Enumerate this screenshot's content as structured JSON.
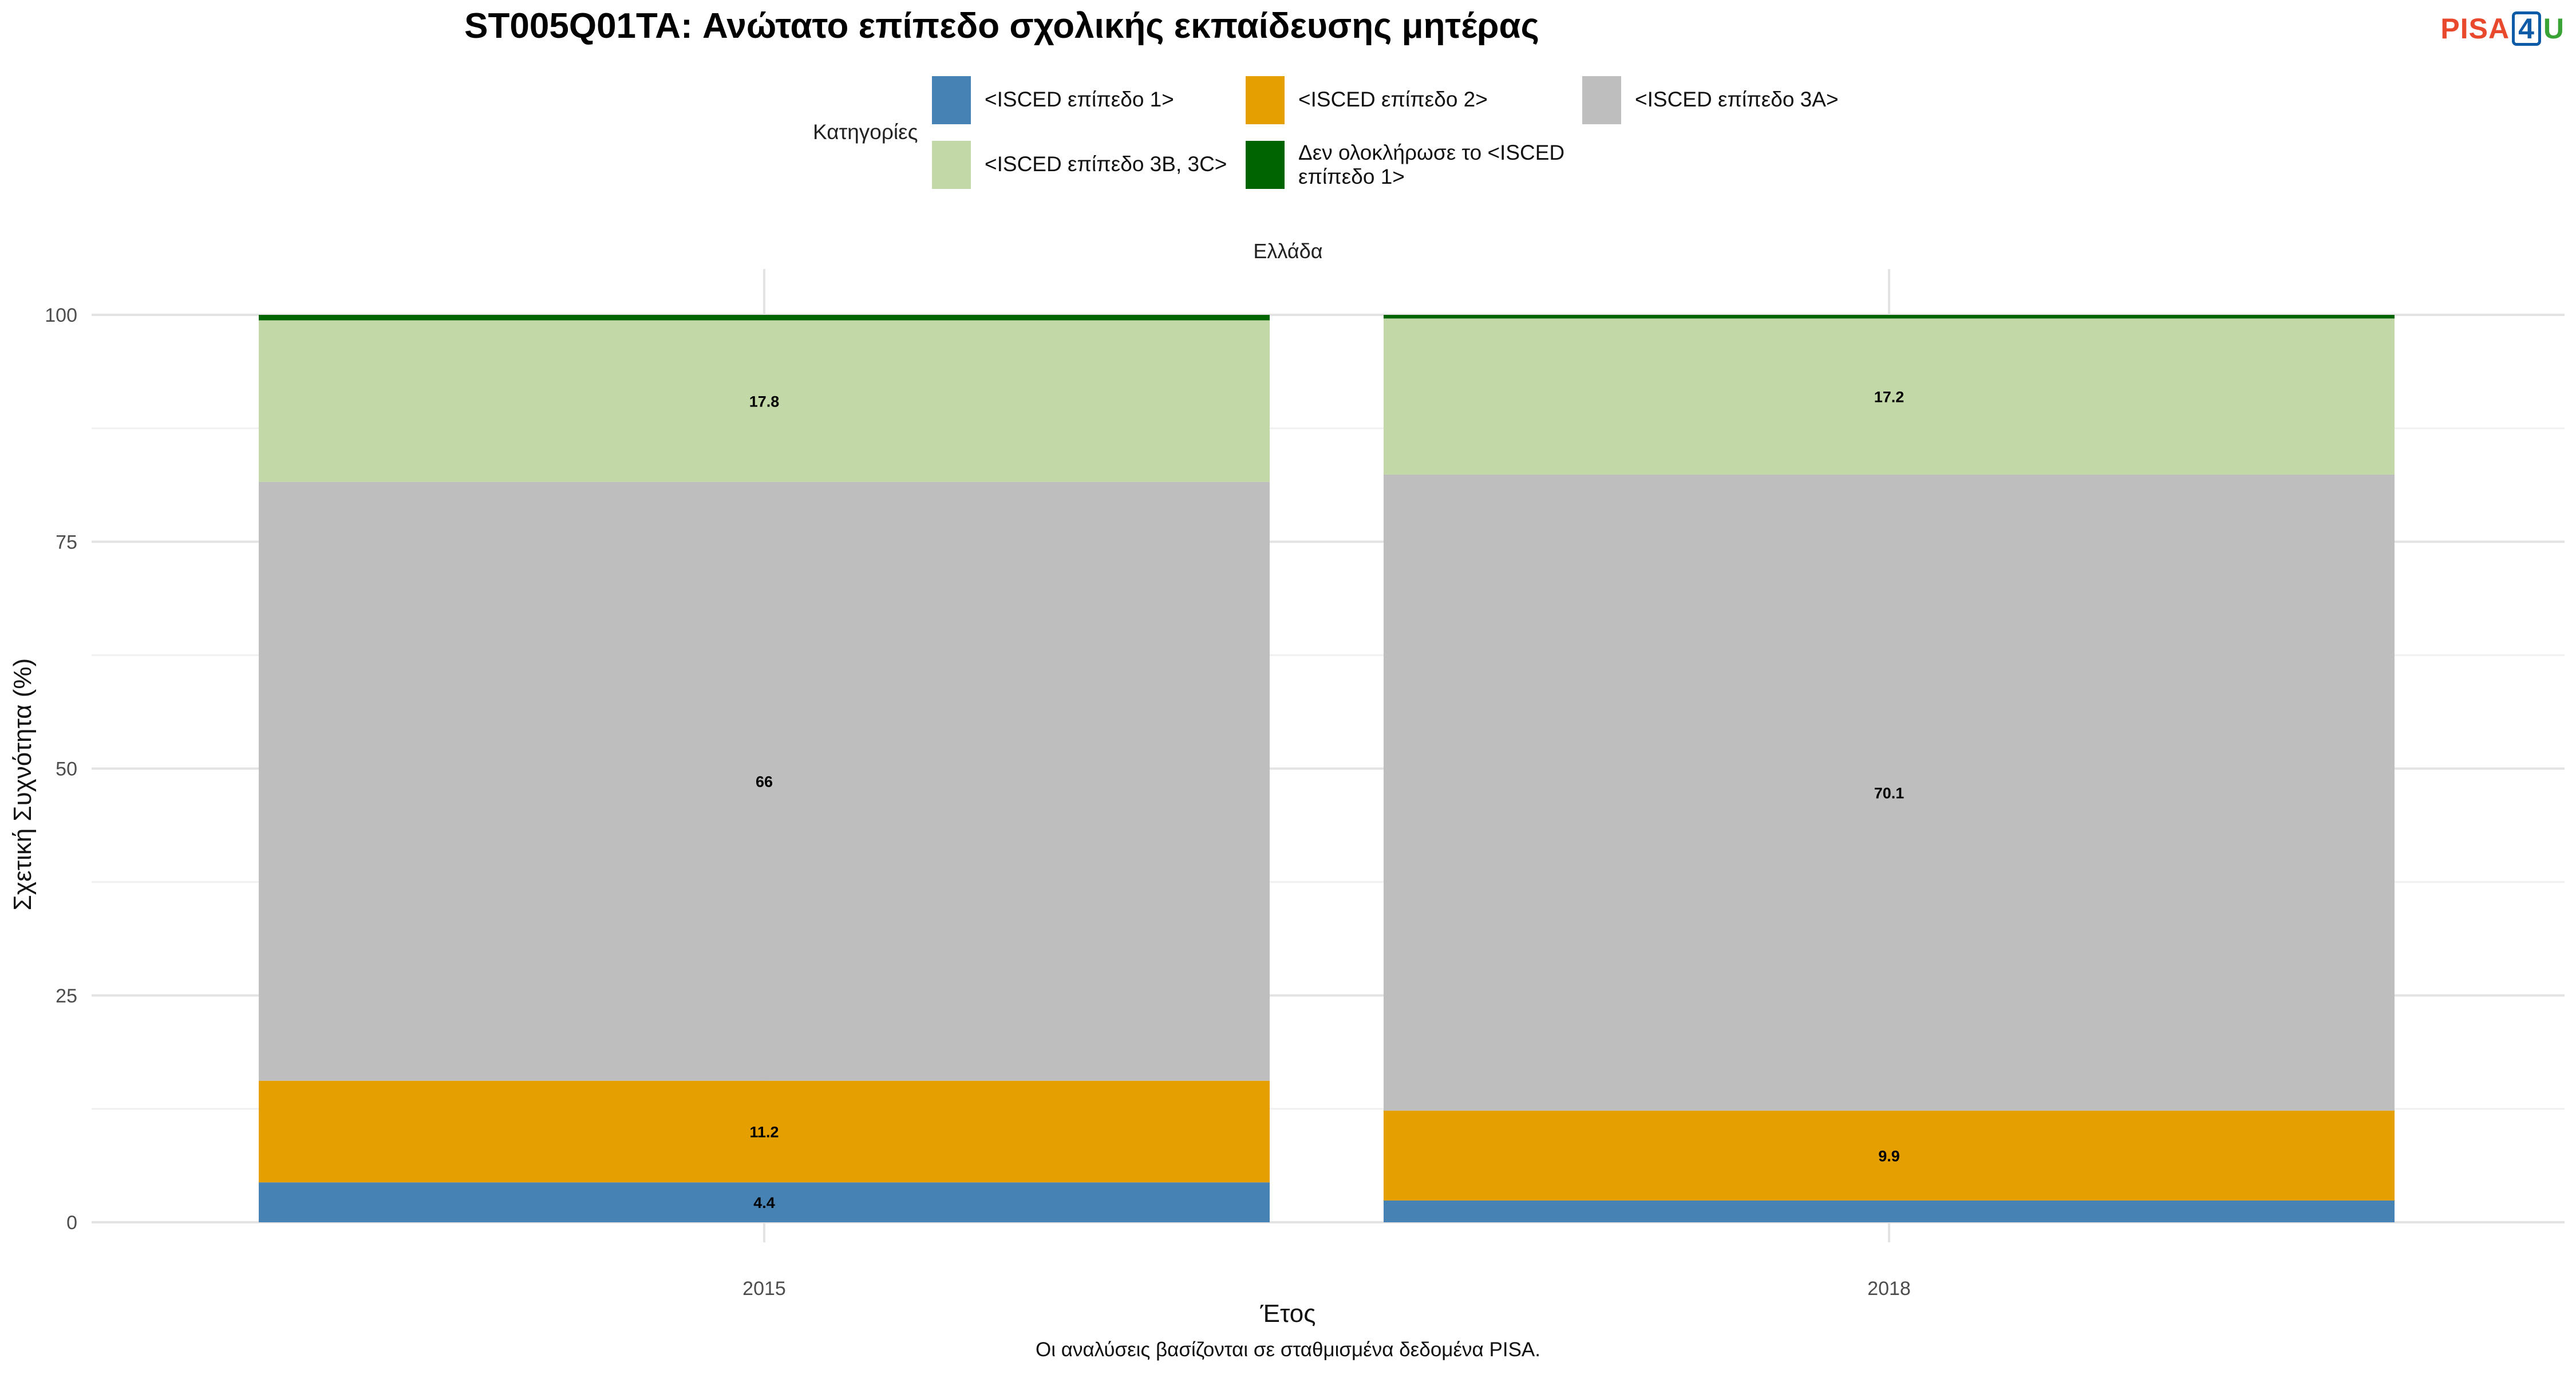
{
  "chart_data": {
    "type": "bar",
    "title": "ST005Q01TA: Ανώτατο επίπεδο σχολικής εκπαίδευσης μητέρας",
    "facet": "Ελλάδα",
    "xlabel": "Έτος",
    "ylabel": "Σχετική Συχνότητα (%)",
    "caption": "Οι αναλύσεις βασίζονται σε σταθμισμένα δεδομένα PISA.",
    "legend_title": "Κατηγορίες",
    "legend_position": "top",
    "stacked": true,
    "grid": true,
    "ylim": [
      0,
      100
    ],
    "yticks": [
      0,
      25,
      50,
      75,
      100
    ],
    "categories": [
      "2015",
      "2018"
    ],
    "series": [
      {
        "name": "<ISCED επίπεδο 1>",
        "color": "#4682b4",
        "values": [
          4.4,
          2.4
        ],
        "labels": [
          "4.4",
          ""
        ]
      },
      {
        "name": "<ISCED επίπεδο 2>",
        "color": "#e69f00",
        "values": [
          11.2,
          9.9
        ],
        "labels": [
          "11.2",
          "9.9"
        ]
      },
      {
        "name": "<ISCED επίπεδο 3A>",
        "color": "#bebebe",
        "values": [
          66,
          70.1
        ],
        "labels": [
          "66",
          "70.1"
        ]
      },
      {
        "name": "<ISCED επίπεδο 3B, 3C>",
        "color": "#c3d8a7",
        "values": [
          17.8,
          17.2
        ],
        "labels": [
          "17.8",
          "17.2"
        ]
      },
      {
        "name": "Δεν ολοκλήρωσε το <ISCED επίπεδο 1>",
        "color": "#006400",
        "values": [
          0.6,
          0.4
        ],
        "labels": [
          "",
          ""
        ]
      }
    ]
  },
  "logo": {
    "part1": "PISA",
    "part2": "4",
    "part3": "U"
  }
}
